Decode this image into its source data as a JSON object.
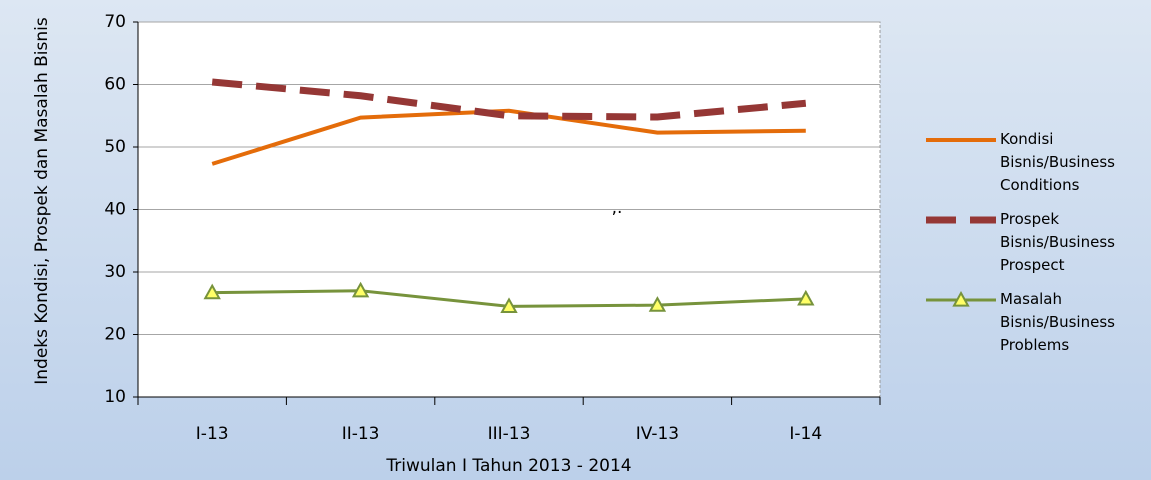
{
  "chart_data": {
    "type": "line",
    "x_label": "Triwulan I Tahun 2013 - 2014",
    "y_label": "Indeks Kondisi, Prospek  dan Masalah Bisnis",
    "annotation": ",.",
    "categories": [
      "I-13",
      "II-13",
      "III-13",
      "IV-13",
      "I-14"
    ],
    "series": [
      {
        "name": "Kondisi Bisnis/Business Conditions",
        "color": "#e46c0a",
        "style": "solid",
        "values": [
          47.3,
          54.7,
          55.8,
          52.3,
          52.6
        ]
      },
      {
        "name": "Prospek Bisnis/Business Prospect",
        "color": "#953735",
        "style": "dashed",
        "values": [
          60.4,
          58.2,
          55.0,
          54.8,
          57.0
        ]
      },
      {
        "name": "Masalah Bisnis/Business Problems",
        "color": "#77933c",
        "style": "triangle",
        "values": [
          26.7,
          27.0,
          24.5,
          24.7,
          25.7
        ]
      }
    ],
    "ylim": [
      10,
      70
    ],
    "yticks": [
      10,
      20,
      30,
      40,
      50,
      60,
      70
    ],
    "grid": true
  }
}
